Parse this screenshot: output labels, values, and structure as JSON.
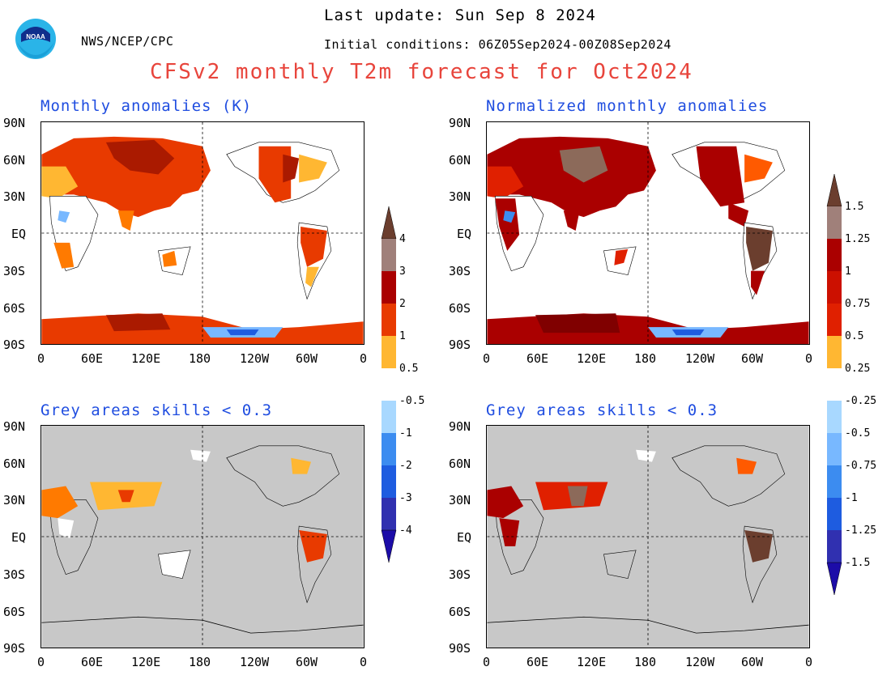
{
  "header": {
    "agency": "NWS/NCEP/CPC",
    "last_update": "Last update: Sun Sep 8 2024",
    "initial_conditions": "Initial conditions: 06Z05Sep2024-00Z08Sep2024",
    "title": "CFSv2 monthly T2m forecast for Oct2024",
    "logo_text": "NOAA"
  },
  "axes": {
    "lat_labels": [
      "90N",
      "60N",
      "30N",
      "EQ",
      "30S",
      "60S",
      "90S"
    ],
    "lon_labels": [
      "0",
      "60E",
      "120E",
      "180",
      "120W",
      "60W",
      "0"
    ]
  },
  "panels": [
    {
      "id": "anom",
      "title": "Monthly anomalies (K)",
      "grey_mask": false,
      "palette": "anom"
    },
    {
      "id": "norm",
      "title": "Normalized monthly anomalies",
      "grey_mask": false,
      "palette": "norm"
    },
    {
      "id": "anom_skill",
      "title": "Grey areas skills < 0.3",
      "grey_mask": true,
      "palette": "anom"
    },
    {
      "id": "norm_skill",
      "title": "Grey areas skills < 0.3",
      "grey_mask": true,
      "palette": "norm"
    }
  ],
  "colorbars": {
    "anom": {
      "labels_warm": [
        "4",
        "3",
        "2",
        "1",
        "0.5"
      ],
      "labels_cold": [
        "-0.5",
        "-1",
        "-2",
        "-3",
        "-4"
      ]
    },
    "norm": {
      "labels_warm": [
        "1.5",
        "1.25",
        "1",
        "0.75",
        "0.5",
        "0.25"
      ],
      "labels_cold": [
        "-0.25",
        "-0.5",
        "-0.75",
        "-1",
        "-1.25",
        "-1.5"
      ]
    },
    "warm_colors": [
      "#6b3e2e",
      "#a0807a",
      "#aa0000",
      "#e02000",
      "#ff5a00",
      "#ffb732"
    ],
    "cold_colors": [
      "#a8d8ff",
      "#78b8ff",
      "#3c8cf0",
      "#1e5ce0",
      "#3030b0",
      "#20189a"
    ],
    "top_tip": "#6b3e2e",
    "bottom_tip": "#1c0ca8",
    "neutral": "#ffffff"
  },
  "colors": {
    "grey_mask": "#c8c8c8",
    "land_outline": "#000000"
  }
}
